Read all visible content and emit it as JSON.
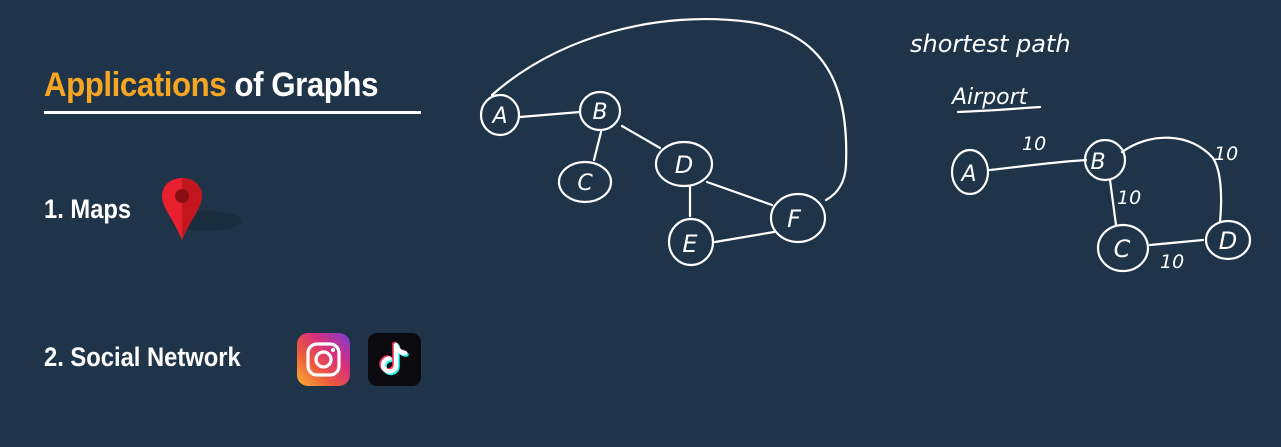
{
  "slide": {
    "title_accent": "Applications",
    "title_rest": "of Graphs",
    "items": [
      {
        "label": "1. Maps",
        "icon": "map-pin-icon"
      },
      {
        "label": "2.  Social Network",
        "icons": [
          "instagram-icon",
          "tiktok-icon"
        ]
      }
    ]
  },
  "graph1": {
    "nodes": [
      "A",
      "B",
      "C",
      "D",
      "E",
      "F"
    ]
  },
  "notes": {
    "line1": "shortest path",
    "line2": "Airport"
  },
  "graph2": {
    "nodes": [
      "A",
      "B",
      "C",
      "D"
    ],
    "edge_weights": {
      "ab": "10",
      "bd": "10",
      "bc": "10",
      "cd": "10"
    }
  },
  "colors": {
    "background": "#1f3448",
    "accent": "#f5a623",
    "text": "#ffffff",
    "pin_red": "#e8202e"
  }
}
